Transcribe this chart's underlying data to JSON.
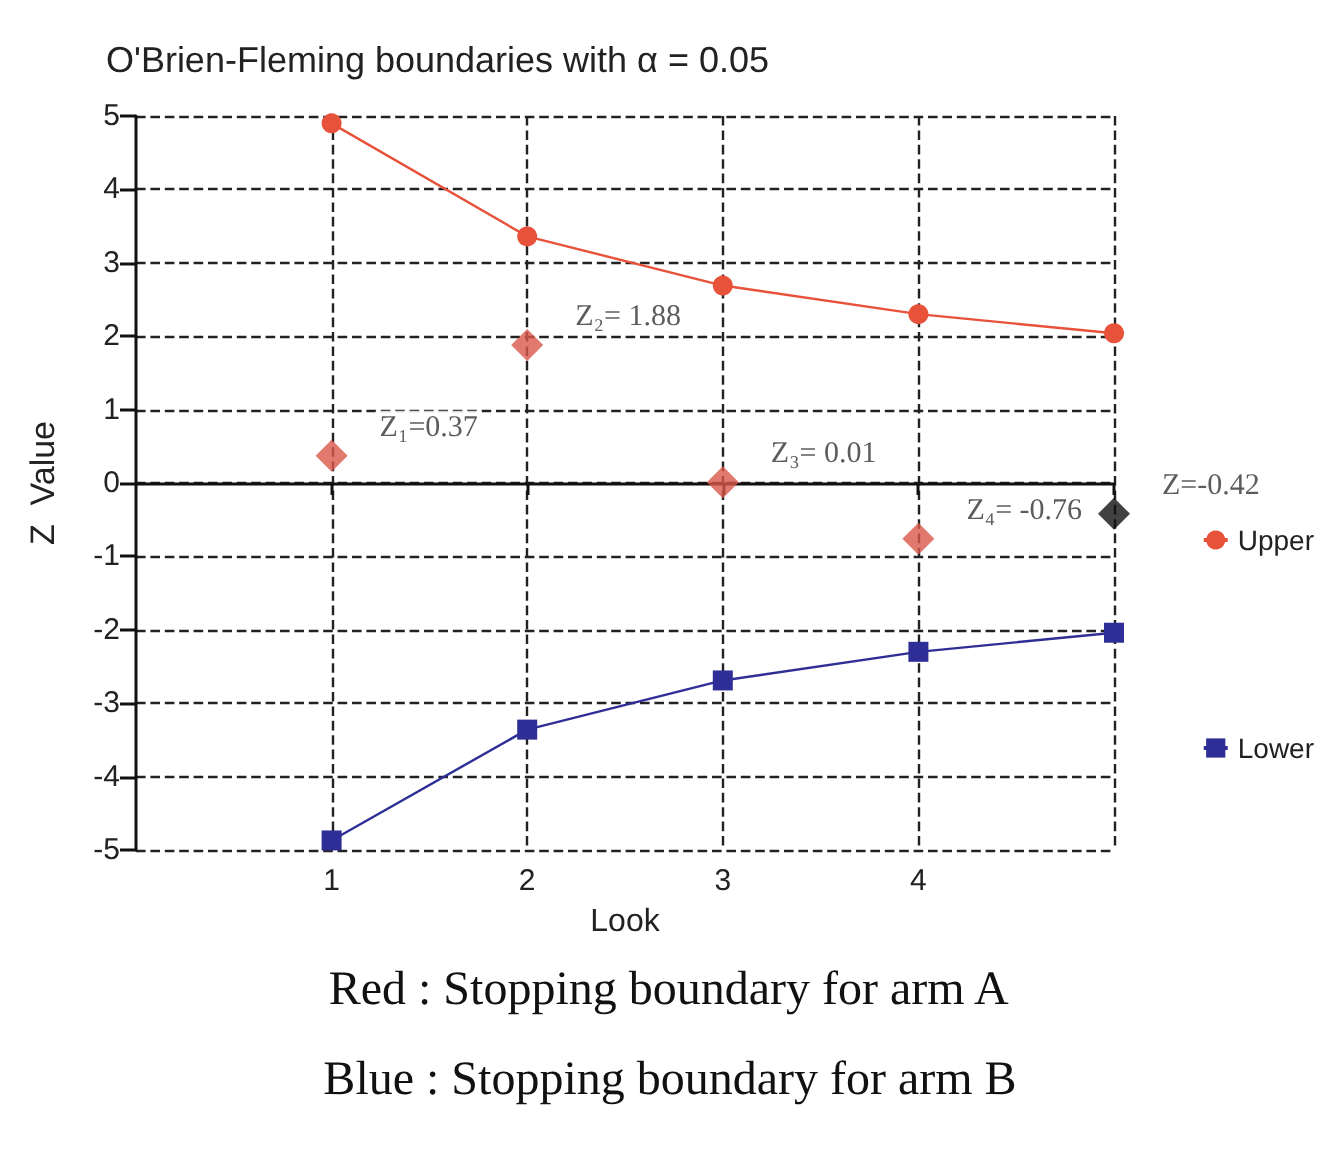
{
  "chart_data": {
    "type": "line",
    "title": "O'Brien-Fleming boundaries with α = 0.05",
    "xlabel": "Look",
    "ylabel": "Z  Value",
    "x": [
      1,
      2,
      3,
      4,
      5
    ],
    "xlim": [
      0,
      5
    ],
    "xticks": [
      1,
      2,
      3,
      4,
      {
        "value": 5,
        "label": null
      }
    ],
    "ylim": [
      -5,
      5
    ],
    "yticks": [
      -5,
      -4,
      -3,
      -2,
      -1,
      0,
      1,
      2,
      3,
      4,
      5
    ],
    "grid": true,
    "legend": "right",
    "series": [
      {
        "name": "Upper",
        "color": "#e8513a",
        "marker": "circle",
        "values": [
          4.9,
          3.36,
          2.69,
          2.3,
          2.04
        ]
      },
      {
        "name": "Lower",
        "color": "#2e2e96",
        "marker": "square",
        "values": [
          -4.87,
          -3.36,
          -2.69,
          -2.3,
          -2.04
        ]
      },
      {
        "type": "scatter",
        "marker": "diamond",
        "colors": [
          "#d9584a",
          "#d9584a",
          "#d9584a",
          "#d9584a",
          "#111111"
        ],
        "values": [
          0.37,
          1.88,
          0.01,
          -0.76,
          -0.42
        ],
        "value_labels": [
          "Z₁=0.37",
          "Z₂= 1.88",
          "Z₃= 0.01",
          "Z₄= -0.76",
          "Z=-0.42"
        ]
      }
    ],
    "annotations": [
      "Red : Stopping boundary for arm A",
      "Blue : Stopping boundary for arm B"
    ]
  }
}
